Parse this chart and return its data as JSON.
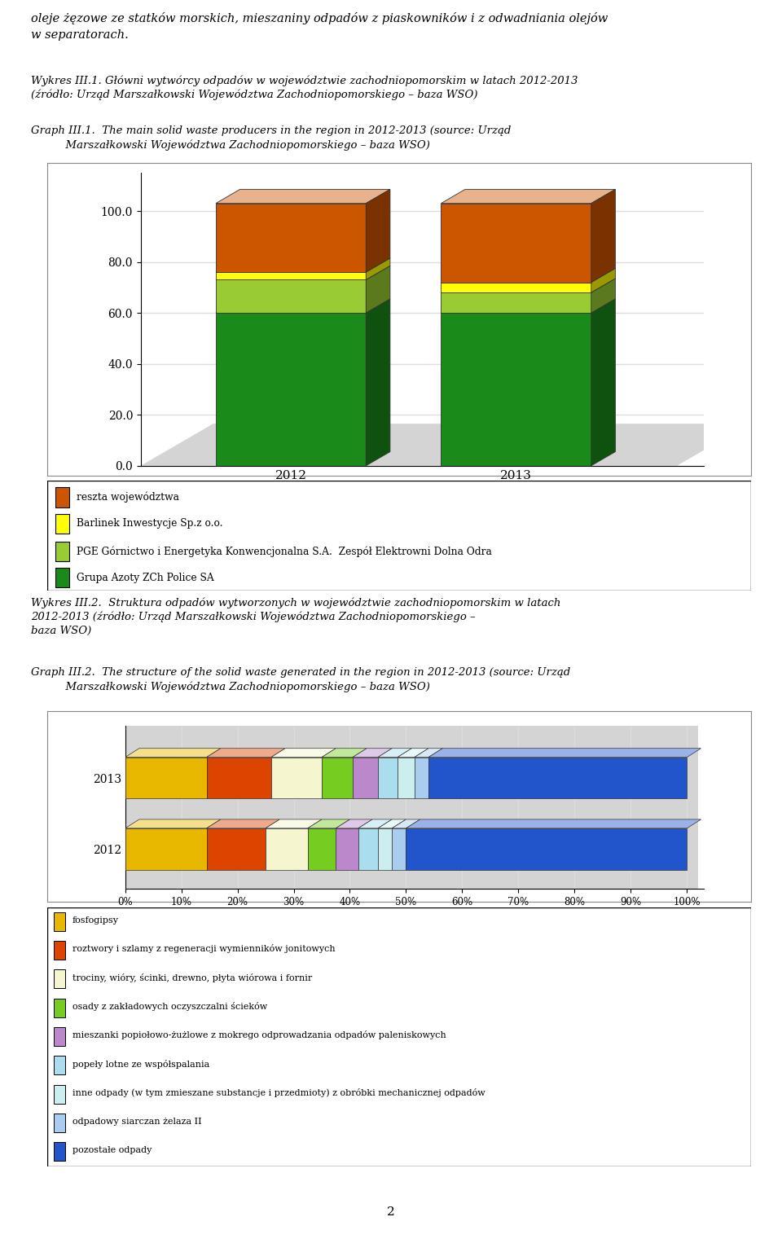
{
  "text_top": "oleje żęzowe ze statków morskich, mieszaniny odpadów z piaskowników i z odwadniania olejów\nw separatorach.",
  "chart1_title_pl": "Wykres III.1. Główni wytwórcy odpadów w województwie zachodniopomorskim w latach 2012-2013\n(źródło: Urząd Marszałkowski Województwa Zachodniopomorskiego – baza WSO)",
  "chart1_title_en": "Graph III.1.  The main solid waste producers in the region in 2012-2013 (source: Urząd\n          Marszałkowski Województwa Zachodniopomorskiego – baza WSO)",
  "chart1_categories": [
    "2012",
    "2013"
  ],
  "chart1_series": [
    {
      "label": "Grupa Azoty ZCh Police SA",
      "color": "#1a8a1a",
      "values": [
        60.0,
        60.0
      ]
    },
    {
      "label": "PGE Górnictwo i Energetyka Konwencjonalna S.A.  Zespół Elektrowni Dolna Odra",
      "color": "#99cc33",
      "values": [
        13.0,
        8.0
      ]
    },
    {
      "label": "Barlinek Inwestycje Sp.z o.o.",
      "color": "#ffff00",
      "values": [
        3.0,
        4.0
      ]
    },
    {
      "label": "reszta województwa",
      "color": "#cc5500",
      "values": [
        27.0,
        31.0
      ]
    }
  ],
  "chart1_yticks": [
    0.0,
    20.0,
    40.0,
    60.0,
    80.0,
    100.0
  ],
  "chart1_ylim": [
    0,
    115
  ],
  "chart1_legend_order": [
    3,
    2,
    1,
    0
  ],
  "chart2_title_pl": "Wykres III.2.  Struktura odpadów wytworzonych w województwie zachodniopomorskim w latach\n2012-2013 (źródło: Urząd Marszałkowski Województwa Zachodniopomorskiego –\nbaza WSO)",
  "chart2_title_en": "Graph III.2.  The structure of the solid waste generated in the region in 2012-2013 (source: Urząd\n          Marszałkowski Województwa Zachodniopomorskiego – baza WSO)",
  "chart2_categories": [
    "2013",
    "2012"
  ],
  "chart2_series": [
    {
      "label": "fosfogipsy",
      "color": "#e8b800",
      "v2013": 14.5,
      "v2012": 14.5
    },
    {
      "label": "roztwory i szlamy z regeneracji wymienników jonitowych",
      "color": "#dd4400",
      "v2013": 11.5,
      "v2012": 10.5
    },
    {
      "label": "trociny, wióry, ścinki, drewno, płyta wiórowa i fornir",
      "color": "#f5f5d0",
      "v2013": 9.0,
      "v2012": 7.5
    },
    {
      "label": "osady z zakładowych oczyszczalni ścieków",
      "color": "#77cc22",
      "v2013": 5.5,
      "v2012": 5.0
    },
    {
      "label": "mieszanki popiołowo-żużlowe z mokrego odprowadzania odpadów paleniskowych",
      "color": "#bb88cc",
      "v2013": 4.5,
      "v2012": 4.0
    },
    {
      "label": "popeły lotne ze współspalania",
      "color": "#aaddee",
      "v2013": 3.5,
      "v2012": 3.5
    },
    {
      "label": "inne odpady (w tym zmieszane substancje i przedmioty) z obróbki mechanicznej odpadów",
      "color": "#cceeee",
      "v2013": 3.0,
      "v2012": 2.5
    },
    {
      "label": "odpadowy siarczan żelaza II",
      "color": "#aaccee",
      "v2013": 2.5,
      "v2012": 2.5
    },
    {
      "label": "pozostałe odpady",
      "color": "#2255cc",
      "v2013": 46.0,
      "v2012": 50.0
    }
  ],
  "chart2_legend": [
    {
      "label": "fosfogipsy",
      "color": "#e8b800"
    },
    {
      "label": "roztwory i szlamy z regeneracji wymienników jonitowych",
      "color": "#dd4400"
    },
    {
      "label": "trociny, wióry, ścinki, drewno, płyta wiórowa i fornir",
      "color": "#f5f5d0"
    },
    {
      "label": "osady z zakładowych oczyszczalni ścieków",
      "color": "#77cc22"
    },
    {
      "label": "mieszanki popiołowo-żużlowe z mokrego odprowadzania odpadów paleniskowych",
      "color": "#bb88cc"
    },
    {
      "label": "popeły lotne ze współspalania",
      "color": "#aaddee"
    },
    {
      "label": "inne odpady (w tym zmieszane substancje i przedmioty) z obróbki mechanicznej odpadów",
      "color": "#cceeee"
    },
    {
      "label": "odpadowy siarczan żelaza II",
      "color": "#aaccee"
    },
    {
      "label": "pozostałe odpady",
      "color": "#2255cc"
    }
  ],
  "page_number": "2",
  "bg_color": "#ffffff",
  "plot_bg": "#f8f8f8",
  "gray_bg": "#c8c8c8",
  "gray_side": "#a8a8a8",
  "gray_floor": "#b8b8b8"
}
